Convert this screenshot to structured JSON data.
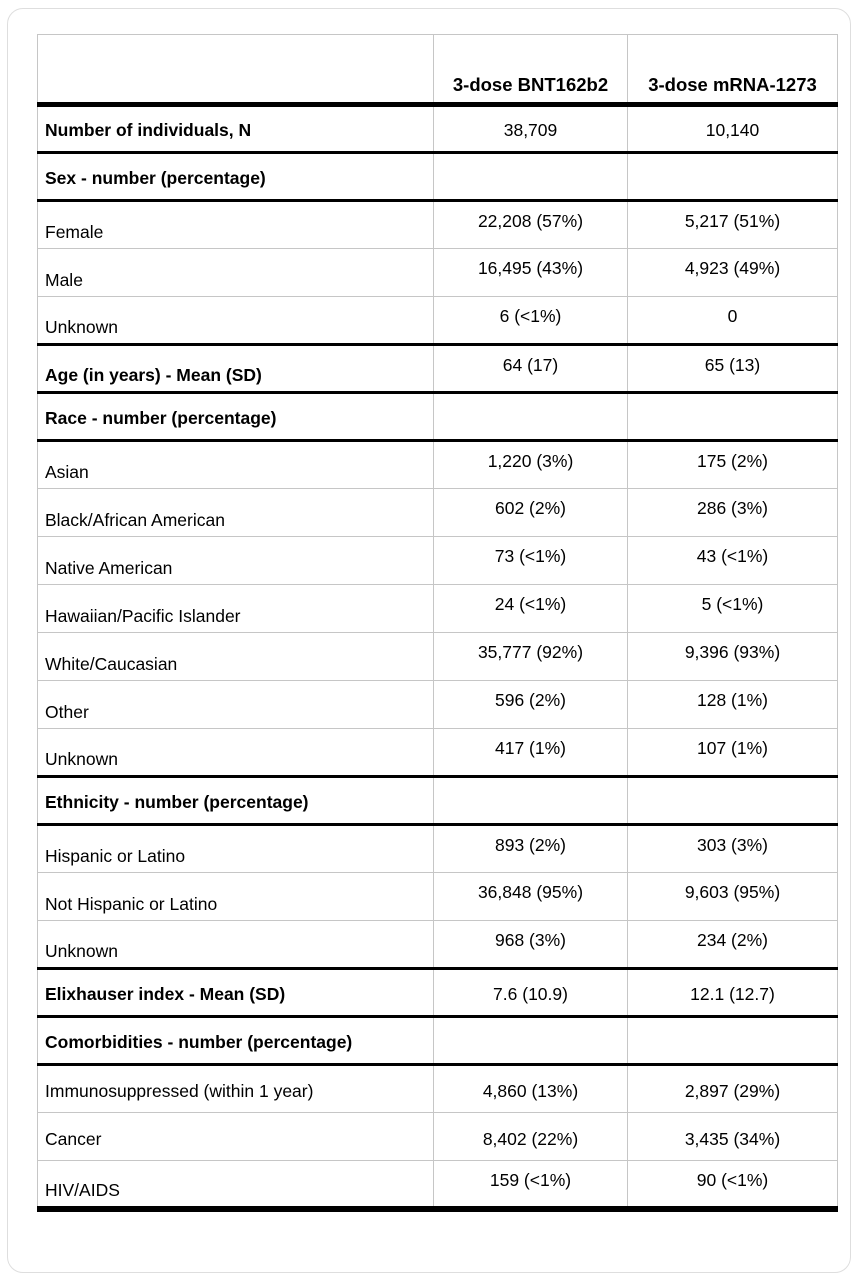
{
  "table": {
    "columns": [
      "",
      "3-dose BNT162b2",
      "3-dose mRNA-1273"
    ],
    "rows": [
      {
        "label": "Number of individuals, N",
        "bnt": "38,709",
        "mrna": "10,140"
      },
      {
        "label": "Sex - number (percentage)",
        "bnt": "",
        "mrna": ""
      },
      {
        "label": "Female",
        "bnt": "22,208 (57%)",
        "mrna": "5,217 (51%)"
      },
      {
        "label": "Male",
        "bnt": "16,495 (43%)",
        "mrna": "4,923 (49%)"
      },
      {
        "label": "Unknown",
        "bnt": "6 (<1%)",
        "mrna": "0"
      },
      {
        "label": "Age (in years) - Mean (SD)",
        "bnt": "64 (17)",
        "mrna": "65 (13)"
      },
      {
        "label": "Race - number (percentage)",
        "bnt": "",
        "mrna": ""
      },
      {
        "label": "Asian",
        "bnt": "1,220 (3%)",
        "mrna": "175 (2%)"
      },
      {
        "label": "Black/African American",
        "bnt": "602 (2%)",
        "mrna": "286 (3%)"
      },
      {
        "label": "Native American",
        "bnt": "73 (<1%)",
        "mrna": "43 (<1%)"
      },
      {
        "label": "Hawaiian/Pacific Islander",
        "bnt": "24 (<1%)",
        "mrna": "5 (<1%)"
      },
      {
        "label": "White/Caucasian",
        "bnt": "35,777 (92%)",
        "mrna": "9,396 (93%)"
      },
      {
        "label": "Other",
        "bnt": "596 (2%)",
        "mrna": "128 (1%)"
      },
      {
        "label": "Unknown",
        "bnt": "417 (1%)",
        "mrna": "107 (1%)"
      },
      {
        "label": "Ethnicity - number (percentage)",
        "bnt": "",
        "mrna": ""
      },
      {
        "label": "Hispanic or Latino",
        "bnt": "893 (2%)",
        "mrna": "303 (3%)"
      },
      {
        "label": "Not Hispanic or Latino",
        "bnt": "36,848 (95%)",
        "mrna": "9,603 (95%)"
      },
      {
        "label": "Unknown",
        "bnt": "968 (3%)",
        "mrna": "234 (2%)"
      },
      {
        "label": "Elixhauser index - Mean (SD)",
        "bnt": "7.6 (10.9)",
        "mrna": "12.1 (12.7)"
      },
      {
        "label": "Comorbidities - number (percentage)",
        "bnt": "",
        "mrna": ""
      },
      {
        "label": "Immunosuppressed (within 1 year)",
        "bnt": "4,860 (13%)",
        "mrna": "2,897 (29%)"
      },
      {
        "label": "Cancer",
        "bnt": "8,402 (22%)",
        "mrna": "3,435 (34%)"
      },
      {
        "label": "HIV/AIDS",
        "bnt": "159 (<1%)",
        "mrna": "90 (<1%)"
      }
    ]
  }
}
